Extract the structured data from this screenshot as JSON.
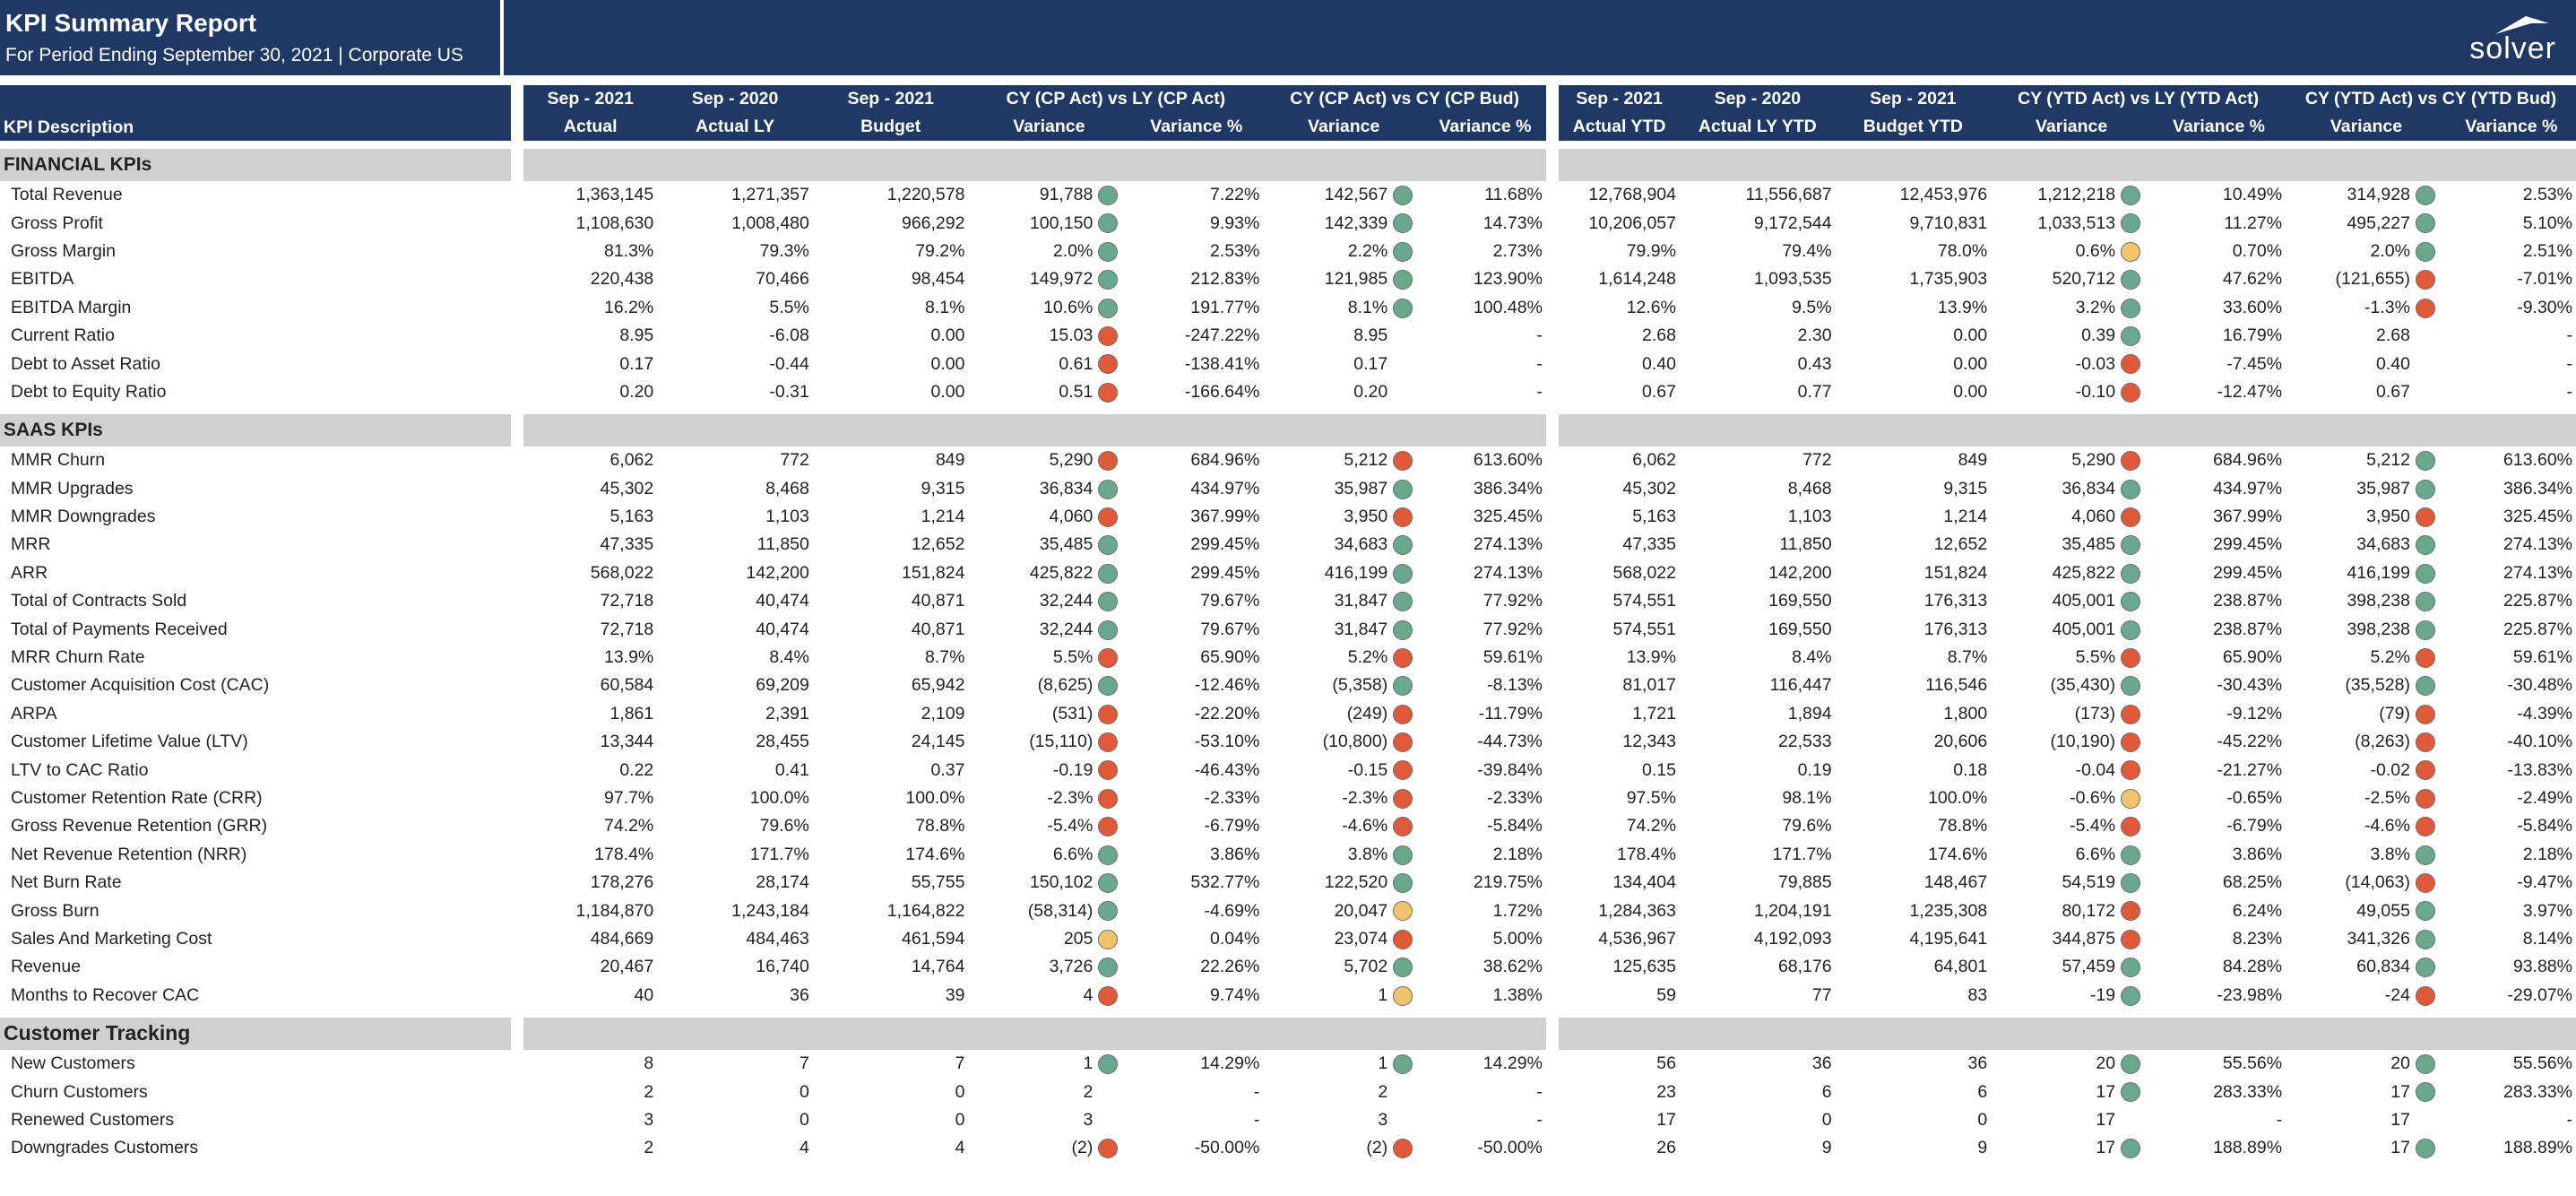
{
  "header": {
    "title": "KPI Summary Report",
    "subtitle": "For Period Ending September 30, 2021 | Corporate US",
    "logo_text": "solver"
  },
  "columns": {
    "desc": "KPI Description",
    "c1_top": "Sep - 2021",
    "c1_bot": "Actual",
    "c2_top": "Sep - 2020",
    "c2_bot": "Actual LY",
    "c3_top": "Sep - 2021",
    "c3_bot": "Budget",
    "g1_top": "CY (CP Act) vs LY (CP Act)",
    "g1_var": "Variance",
    "g1_pct": "Variance %",
    "g2_top": "CY (CP Act) vs CY (CP Bud)",
    "g2_var": "Variance",
    "g2_pct": "Variance %",
    "c4_top": "Sep - 2021",
    "c4_bot": "Actual YTD",
    "c5_top": "Sep - 2020",
    "c5_bot": "Actual LY YTD",
    "c6_top": "Sep - 2021",
    "c6_bot": "Budget YTD",
    "g3_top": "CY (YTD Act) vs LY (YTD Act)",
    "g3_var": "Variance",
    "g3_pct": "Variance %",
    "g4_top": "CY (YTD Act) vs CY (YTD Bud)",
    "g4_var": "Variance",
    "g4_pct": "Variance %"
  },
  "status_colors": {
    "g": "#6aa88d",
    "r": "#e05a3a",
    "y": "#f2c46c"
  },
  "sections": [
    {
      "title": "FINANCIAL KPIs",
      "rows": [
        {
          "label": "Total Revenue",
          "v": [
            "1,363,145",
            "1,271,357",
            "1,220,578",
            "91,788",
            "g",
            "7.22%",
            "142,567",
            "g",
            "11.68%",
            "12,768,904",
            "11,556,687",
            "12,453,976",
            "1,212,218",
            "g",
            "10.49%",
            "314,928",
            "g",
            "2.53%"
          ]
        },
        {
          "label": "Gross Profit",
          "v": [
            "1,108,630",
            "1,008,480",
            "966,292",
            "100,150",
            "g",
            "9.93%",
            "142,339",
            "g",
            "14.73%",
            "10,206,057",
            "9,172,544",
            "9,710,831",
            "1,033,513",
            "g",
            "11.27%",
            "495,227",
            "g",
            "5.10%"
          ]
        },
        {
          "label": "Gross Margin",
          "v": [
            "81.3%",
            "79.3%",
            "79.2%",
            "2.0%",
            "g",
            "2.53%",
            "2.2%",
            "g",
            "2.73%",
            "79.9%",
            "79.4%",
            "78.0%",
            "0.6%",
            "y",
            "0.70%",
            "2.0%",
            "g",
            "2.51%"
          ]
        },
        {
          "label": "EBITDA",
          "v": [
            "220,438",
            "70,466",
            "98,454",
            "149,972",
            "g",
            "212.83%",
            "121,985",
            "g",
            "123.90%",
            "1,614,248",
            "1,093,535",
            "1,735,903",
            "520,712",
            "g",
            "47.62%",
            "(121,655)",
            "r",
            "-7.01%"
          ]
        },
        {
          "label": "EBITDA Margin",
          "v": [
            "16.2%",
            "5.5%",
            "8.1%",
            "10.6%",
            "g",
            "191.77%",
            "8.1%",
            "g",
            "100.48%",
            "12.6%",
            "9.5%",
            "13.9%",
            "3.2%",
            "g",
            "33.60%",
            "-1.3%",
            "r",
            "-9.30%"
          ]
        },
        {
          "label": "Current Ratio",
          "v": [
            "8.95",
            "-6.08",
            "0.00",
            "15.03",
            "r",
            "-247.22%",
            "8.95",
            "n",
            "-",
            "2.68",
            "2.30",
            "0.00",
            "0.39",
            "g",
            "16.79%",
            "2.68",
            "n",
            "-"
          ]
        },
        {
          "label": "Debt to Asset Ratio",
          "v": [
            "0.17",
            "-0.44",
            "0.00",
            "0.61",
            "r",
            "-138.41%",
            "0.17",
            "n",
            "-",
            "0.40",
            "0.43",
            "0.00",
            "-0.03",
            "r",
            "-7.45%",
            "0.40",
            "n",
            "-"
          ]
        },
        {
          "label": "Debt to Equity Ratio",
          "v": [
            "0.20",
            "-0.31",
            "0.00",
            "0.51",
            "r",
            "-166.64%",
            "0.20",
            "n",
            "-",
            "0.67",
            "0.77",
            "0.00",
            "-0.10",
            "r",
            "-12.47%",
            "0.67",
            "n",
            "-"
          ]
        }
      ]
    },
    {
      "title": "SAAS KPIs",
      "rows": [
        {
          "label": "MMR Churn",
          "v": [
            "6,062",
            "772",
            "849",
            "5,290",
            "r",
            "684.96%",
            "5,212",
            "r",
            "613.60%",
            "6,062",
            "772",
            "849",
            "5,290",
            "r",
            "684.96%",
            "5,212",
            "g",
            "613.60%"
          ]
        },
        {
          "label": "MMR Upgrades",
          "v": [
            "45,302",
            "8,468",
            "9,315",
            "36,834",
            "g",
            "434.97%",
            "35,987",
            "g",
            "386.34%",
            "45,302",
            "8,468",
            "9,315",
            "36,834",
            "g",
            "434.97%",
            "35,987",
            "g",
            "386.34%"
          ]
        },
        {
          "label": "MMR Downgrades",
          "v": [
            "5,163",
            "1,103",
            "1,214",
            "4,060",
            "r",
            "367.99%",
            "3,950",
            "r",
            "325.45%",
            "5,163",
            "1,103",
            "1,214",
            "4,060",
            "r",
            "367.99%",
            "3,950",
            "r",
            "325.45%"
          ]
        },
        {
          "label": "MRR",
          "v": [
            "47,335",
            "11,850",
            "12,652",
            "35,485",
            "g",
            "299.45%",
            "34,683",
            "g",
            "274.13%",
            "47,335",
            "11,850",
            "12,652",
            "35,485",
            "g",
            "299.45%",
            "34,683",
            "g",
            "274.13%"
          ]
        },
        {
          "label": "ARR",
          "v": [
            "568,022",
            "142,200",
            "151,824",
            "425,822",
            "g",
            "299.45%",
            "416,199",
            "g",
            "274.13%",
            "568,022",
            "142,200",
            "151,824",
            "425,822",
            "g",
            "299.45%",
            "416,199",
            "g",
            "274.13%"
          ]
        },
        {
          "label": "Total of Contracts Sold",
          "v": [
            "72,718",
            "40,474",
            "40,871",
            "32,244",
            "g",
            "79.67%",
            "31,847",
            "g",
            "77.92%",
            "574,551",
            "169,550",
            "176,313",
            "405,001",
            "g",
            "238.87%",
            "398,238",
            "g",
            "225.87%"
          ]
        },
        {
          "label": "Total of Payments Received",
          "v": [
            "72,718",
            "40,474",
            "40,871",
            "32,244",
            "g",
            "79.67%",
            "31,847",
            "g",
            "77.92%",
            "574,551",
            "169,550",
            "176,313",
            "405,001",
            "g",
            "238.87%",
            "398,238",
            "g",
            "225.87%"
          ]
        },
        {
          "label": "MRR Churn Rate",
          "v": [
            "13.9%",
            "8.4%",
            "8.7%",
            "5.5%",
            "r",
            "65.90%",
            "5.2%",
            "r",
            "59.61%",
            "13.9%",
            "8.4%",
            "8.7%",
            "5.5%",
            "r",
            "65.90%",
            "5.2%",
            "r",
            "59.61%"
          ]
        },
        {
          "label": "Customer Acquisition Cost (CAC)",
          "v": [
            "60,584",
            "69,209",
            "65,942",
            "(8,625)",
            "g",
            "-12.46%",
            "(5,358)",
            "g",
            "-8.13%",
            "81,017",
            "116,447",
            "116,546",
            "(35,430)",
            "g",
            "-30.43%",
            "(35,528)",
            "g",
            "-30.48%"
          ]
        },
        {
          "label": "ARPA",
          "v": [
            "1,861",
            "2,391",
            "2,109",
            "(531)",
            "r",
            "-22.20%",
            "(249)",
            "r",
            "-11.79%",
            "1,721",
            "1,894",
            "1,800",
            "(173)",
            "r",
            "-9.12%",
            "(79)",
            "r",
            "-4.39%"
          ]
        },
        {
          "label": "Customer Lifetime Value (LTV)",
          "v": [
            "13,344",
            "28,455",
            "24,145",
            "(15,110)",
            "r",
            "-53.10%",
            "(10,800)",
            "r",
            "-44.73%",
            "12,343",
            "22,533",
            "20,606",
            "(10,190)",
            "r",
            "-45.22%",
            "(8,263)",
            "r",
            "-40.10%"
          ]
        },
        {
          "label": "LTV to CAC Ratio",
          "v": [
            "0.22",
            "0.41",
            "0.37",
            "-0.19",
            "r",
            "-46.43%",
            "-0.15",
            "r",
            "-39.84%",
            "0.15",
            "0.19",
            "0.18",
            "-0.04",
            "r",
            "-21.27%",
            "-0.02",
            "r",
            "-13.83%"
          ]
        },
        {
          "label": "Customer Retention Rate (CRR)",
          "v": [
            "97.7%",
            "100.0%",
            "100.0%",
            "-2.3%",
            "r",
            "-2.33%",
            "-2.3%",
            "r",
            "-2.33%",
            "97.5%",
            "98.1%",
            "100.0%",
            "-0.6%",
            "y",
            "-0.65%",
            "-2.5%",
            "r",
            "-2.49%"
          ]
        },
        {
          "label": "Gross Revenue Retention (GRR)",
          "v": [
            "74.2%",
            "79.6%",
            "78.8%",
            "-5.4%",
            "r",
            "-6.79%",
            "-4.6%",
            "r",
            "-5.84%",
            "74.2%",
            "79.6%",
            "78.8%",
            "-5.4%",
            "r",
            "-6.79%",
            "-4.6%",
            "r",
            "-5.84%"
          ]
        },
        {
          "label": "Net Revenue Retention (NRR)",
          "v": [
            "178.4%",
            "171.7%",
            "174.6%",
            "6.6%",
            "g",
            "3.86%",
            "3.8%",
            "g",
            "2.18%",
            "178.4%",
            "171.7%",
            "174.6%",
            "6.6%",
            "g",
            "3.86%",
            "3.8%",
            "g",
            "2.18%"
          ]
        },
        {
          "label": "Net Burn Rate",
          "v": [
            "178,276",
            "28,174",
            "55,755",
            "150,102",
            "g",
            "532.77%",
            "122,520",
            "g",
            "219.75%",
            "134,404",
            "79,885",
            "148,467",
            "54,519",
            "g",
            "68.25%",
            "(14,063)",
            "r",
            "-9.47%"
          ]
        },
        {
          "label": "Gross Burn",
          "v": [
            "1,184,870",
            "1,243,184",
            "1,164,822",
            "(58,314)",
            "g",
            "-4.69%",
            "20,047",
            "y",
            "1.72%",
            "1,284,363",
            "1,204,191",
            "1,235,308",
            "80,172",
            "r",
            "6.24%",
            "49,055",
            "g",
            "3.97%"
          ]
        },
        {
          "label": "Sales And Marketing Cost",
          "v": [
            "484,669",
            "484,463",
            "461,594",
            "205",
            "y",
            "0.04%",
            "23,074",
            "r",
            "5.00%",
            "4,536,967",
            "4,192,093",
            "4,195,641",
            "344,875",
            "r",
            "8.23%",
            "341,326",
            "g",
            "8.14%"
          ]
        },
        {
          "label": "Revenue",
          "v": [
            "20,467",
            "16,740",
            "14,764",
            "3,726",
            "g",
            "22.26%",
            "5,702",
            "g",
            "38.62%",
            "125,635",
            "68,176",
            "64,801",
            "57,459",
            "g",
            "84.28%",
            "60,834",
            "g",
            "93.88%"
          ]
        },
        {
          "label": "Months to Recover CAC",
          "v": [
            "40",
            "36",
            "39",
            "4",
            "r",
            "9.74%",
            "1",
            "y",
            "1.38%",
            "59",
            "77",
            "83",
            "-19",
            "g",
            "-23.98%",
            "-24",
            "r",
            "-29.07%"
          ]
        }
      ]
    },
    {
      "title": "Customer Tracking",
      "big": true,
      "rows": [
        {
          "label": "New Customers",
          "v": [
            "8",
            "7",
            "7",
            "1",
            "g",
            "14.29%",
            "1",
            "g",
            "14.29%",
            "56",
            "36",
            "36",
            "20",
            "g",
            "55.56%",
            "20",
            "g",
            "55.56%"
          ]
        },
        {
          "label": "Churn Customers",
          "v": [
            "2",
            "0",
            "0",
            "2",
            "n",
            "-",
            "2",
            "n",
            "-",
            "23",
            "6",
            "6",
            "17",
            "g",
            "283.33%",
            "17",
            "g",
            "283.33%"
          ]
        },
        {
          "label": "Renewed Customers",
          "v": [
            "3",
            "0",
            "0",
            "3",
            "n",
            "-",
            "3",
            "n",
            "-",
            "17",
            "0",
            "0",
            "17",
            "n",
            "-",
            "17",
            "n",
            "-"
          ]
        },
        {
          "label": "Downgrades Customers",
          "v": [
            "2",
            "4",
            "4",
            "(2)",
            "r",
            "-50.00%",
            "(2)",
            "r",
            "-50.00%",
            "26",
            "9",
            "9",
            "17",
            "g",
            "188.89%",
            "17",
            "g",
            "188.89%"
          ]
        }
      ]
    }
  ]
}
